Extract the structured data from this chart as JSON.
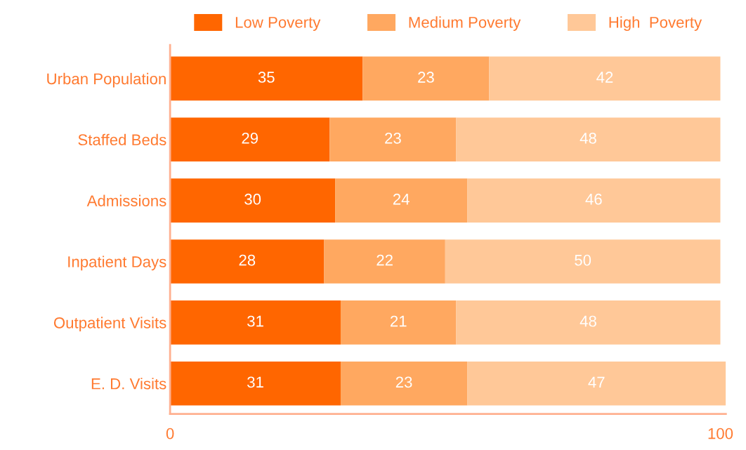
{
  "chart_data": {
    "type": "bar",
    "orientation": "horizontal",
    "stacked": true,
    "data_labels": true,
    "legend": "top",
    "grid": false,
    "categories": [
      "Urban Population",
      "Staffed Beds",
      "Admissions",
      "Inpatient Days",
      "Outpatient Visits",
      "E. D. Visits"
    ],
    "series": [
      {
        "name": "Low Poverty",
        "color": "#ff6600",
        "values": [
          35,
          29,
          30,
          28,
          31,
          31
        ]
      },
      {
        "name": "Medium Poverty",
        "color": "#ffa860",
        "values": [
          23,
          23,
          24,
          22,
          21,
          23
        ]
      },
      {
        "name": "High  Poverty",
        "color": "#ffc898",
        "values": [
          42,
          48,
          46,
          50,
          48,
          47
        ]
      }
    ],
    "xlim": [
      0,
      101
    ],
    "xticks": [
      0,
      100
    ]
  }
}
